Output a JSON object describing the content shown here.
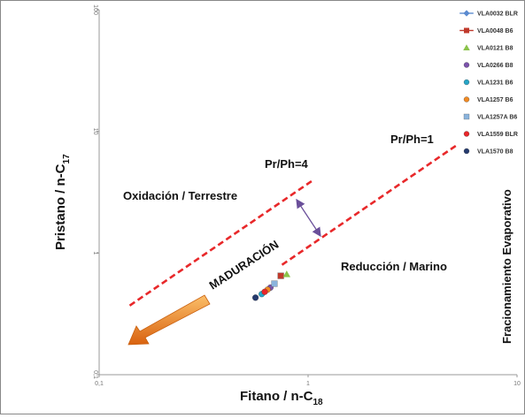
{
  "chart_data": {
    "type": "scatter",
    "x_scale": "log",
    "y_scale": "log",
    "xlim": [
      0.1,
      10
    ],
    "ylim": [
      0.1,
      100
    ],
    "xticks": [
      "0,1",
      "1",
      "10"
    ],
    "yticks": [
      "0,1",
      "1",
      "10",
      "100"
    ],
    "xlabel": "Fitano / n-C",
    "xlabel_sub": "18",
    "ylabel": "Pristano / n-C",
    "ylabel_sub": "17",
    "right_label": "Fracionamiento Evaporativo",
    "grid": false,
    "legend_position": "top-right",
    "series": [
      {
        "name": "VLA0032 BLR",
        "color": "#5b8bd0",
        "marker": "diamond-line",
        "x": [
          0.73
        ],
        "y": [
          0.62
        ]
      },
      {
        "name": "VLA0048 B6",
        "color": "#c0392b",
        "marker": "square-line",
        "x": [
          0.74
        ],
        "y": [
          0.65
        ]
      },
      {
        "name": "VLA0121 B8",
        "color": "#8bc34a",
        "marker": "triangle",
        "x": [
          0.79
        ],
        "y": [
          0.67
        ]
      },
      {
        "name": "VLA0266 B8",
        "color": "#7b52ab",
        "marker": "circle",
        "x": [
          0.66
        ],
        "y": [
          0.52
        ]
      },
      {
        "name": "VLA1231 B6",
        "color": "#26a5c7",
        "marker": "circle",
        "x": [
          0.6
        ],
        "y": [
          0.46
        ]
      },
      {
        "name": "VLA1257 B6",
        "color": "#f08a24",
        "marker": "circle",
        "x": [
          0.64
        ],
        "y": [
          0.5
        ]
      },
      {
        "name": "VLA1257A B6",
        "color": "#8ab4dd",
        "marker": "square",
        "x": [
          0.69
        ],
        "y": [
          0.56
        ]
      },
      {
        "name": "VLA1559 BLR",
        "color": "#e8262a",
        "marker": "circle",
        "x": [
          0.62
        ],
        "y": [
          0.48
        ]
      },
      {
        "name": "VLA1570 B8",
        "color": "#243a6e",
        "marker": "circle",
        "x": [
          0.56
        ],
        "y": [
          0.43
        ]
      }
    ],
    "lines": [
      {
        "label": "Pr/Ph=4",
        "x": [
          0.14,
          1.04
        ],
        "y": [
          0.37,
          3.9
        ]
      },
      {
        "label": "Pr/Ph=1",
        "x": [
          0.75,
          5.2
        ],
        "y": [
          0.8,
          7.8
        ]
      }
    ],
    "annotations": [
      "Oxidación / Terrestre",
      "Reducción / Marino",
      "MADURACIÓN"
    ],
    "colors": {
      "dash_line": "#e8282a",
      "arrow": "#f08a24",
      "double_arrow": "#6a4f9a"
    }
  }
}
